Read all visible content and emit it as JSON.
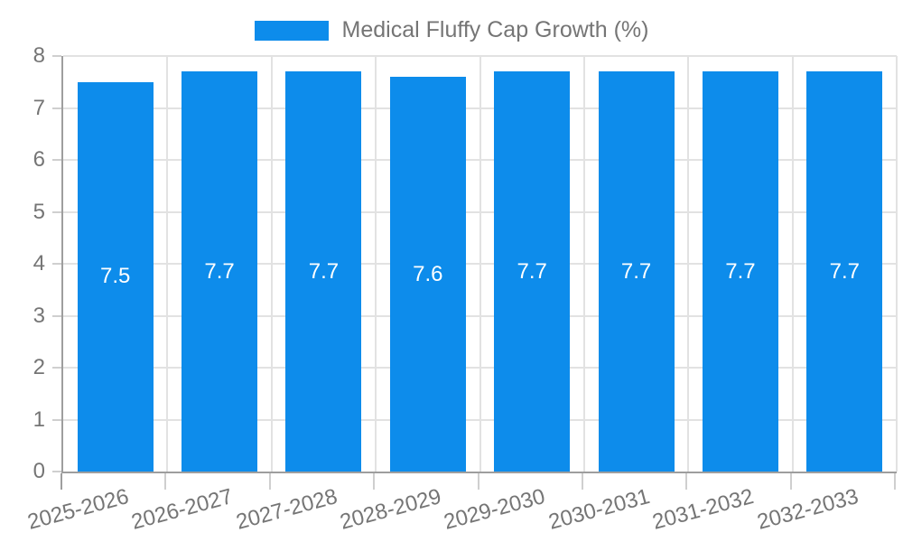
{
  "legend": {
    "label": "Medical Fluffy Cap Growth (%)"
  },
  "chart_data": {
    "type": "bar",
    "title": "Medical Fluffy Cap Growth (%)",
    "categories": [
      "2025-2026",
      "2026-2027",
      "2027-2028",
      "2028-2029",
      "2029-2030",
      "2030-2031",
      "2031-2032",
      "2032-2033"
    ],
    "values": [
      7.5,
      7.7,
      7.7,
      7.6,
      7.7,
      7.7,
      7.7,
      7.7
    ],
    "value_labels": [
      "7.5",
      "7.7",
      "7.7",
      "7.6",
      "7.7",
      "7.7",
      "7.7",
      "7.7"
    ],
    "xlabel": "",
    "ylabel": "",
    "ylim": [
      0,
      8
    ],
    "yticks": [
      0,
      1,
      2,
      3,
      4,
      5,
      6,
      7,
      8
    ],
    "grid": true,
    "legend_position": "top",
    "series_name": "Medical Fluffy Cap Growth (%)"
  },
  "colors": {
    "bar": "#0d8ceb",
    "grid": "#e2e2e2",
    "axis": "#9e9e9e",
    "tick": "#cfcfcf",
    "text": "#757575",
    "bar_label": "#ffffff",
    "background": "#ffffff"
  }
}
